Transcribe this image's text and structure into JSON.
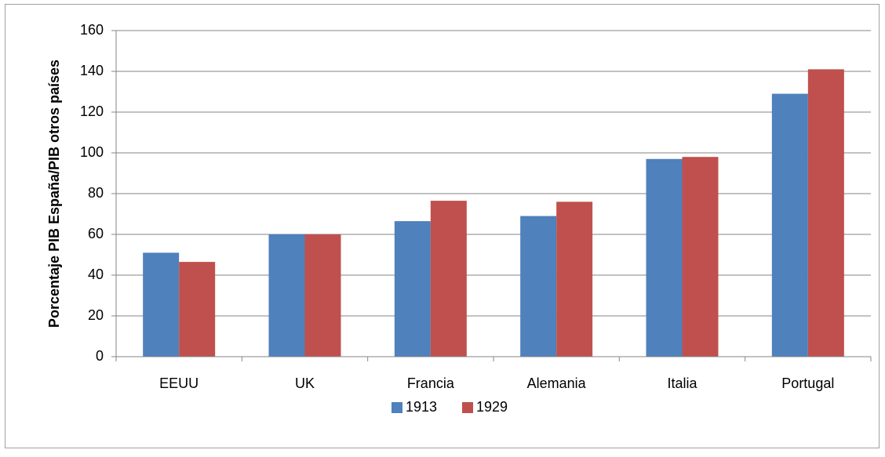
{
  "chart_data": {
    "type": "bar",
    "y_label": "Porcentaje PIB España/PIB otros países",
    "categories": [
      "EEUU",
      "UK",
      "Francia",
      "Alemania",
      "Italia",
      "Portugal"
    ],
    "series": [
      {
        "name": "1913",
        "color": "#4f81bd",
        "values": [
          51,
          60,
          66.5,
          69,
          97,
          129
        ]
      },
      {
        "name": "1929",
        "color": "#c0504d",
        "values": [
          46.5,
          60,
          76.5,
          76,
          98,
          141
        ]
      }
    ],
    "ylim": [
      0,
      160
    ],
    "yticks": [
      0,
      20,
      40,
      60,
      80,
      100,
      120,
      140,
      160
    ],
    "grid": true,
    "legend": "bottom"
  }
}
